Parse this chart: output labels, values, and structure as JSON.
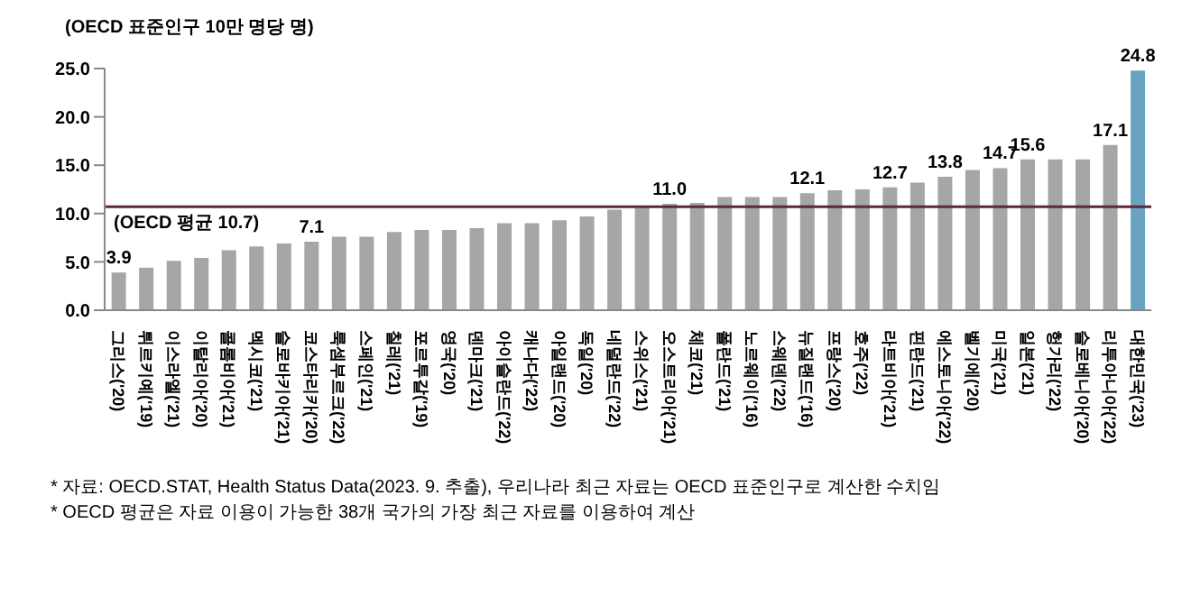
{
  "chart_data": {
    "type": "bar",
    "ylabel": "(OECD 표준인구 10만 명당 명)",
    "categories": [
      "그리스('20)",
      "튀르키예('19)",
      "이스라엘('21)",
      "이탈리아('20)",
      "콜롬비아('21)",
      "멕시코('21)",
      "슬로바키아('21)",
      "코스타리카('20)",
      "룩셈부르크('22)",
      "스페인('21)",
      "칠레('21)",
      "포르투갈('19)",
      "영국('20)",
      "덴마크('21)",
      "아이슬란드('22)",
      "캐나다('22)",
      "아일랜드('20)",
      "독일('20)",
      "네덜란드('22)",
      "스위스('21)",
      "오스트리아('21)",
      "체코('21)",
      "폴란드('21)",
      "노르웨이('16)",
      "스웨덴('22)",
      "뉴질랜드('16)",
      "프랑스('20)",
      "호주('22)",
      "라트비아('21)",
      "핀란드('21)",
      "에스토니아('22)",
      "벨기에('20)",
      "미국('21)",
      "일본('21)",
      "헝가리('22)",
      "슬로베니아('20)",
      "리투아니아('22)",
      "대한민국('23)"
    ],
    "values": [
      3.9,
      4.4,
      5.1,
      5.4,
      6.2,
      6.6,
      6.9,
      7.1,
      7.6,
      7.6,
      8.1,
      8.3,
      8.3,
      8.5,
      9.0,
      9.0,
      9.3,
      9.7,
      10.4,
      10.6,
      11.0,
      11.1,
      11.7,
      11.7,
      11.7,
      12.1,
      12.4,
      12.5,
      12.7,
      13.2,
      13.8,
      14.5,
      14.7,
      15.6,
      15.6,
      15.6,
      17.1,
      24.8
    ],
    "value_labels": [
      "3.9",
      null,
      null,
      null,
      null,
      null,
      null,
      "7.1",
      null,
      null,
      null,
      null,
      null,
      null,
      null,
      null,
      null,
      null,
      null,
      null,
      "11.0",
      null,
      null,
      null,
      null,
      "12.1",
      null,
      null,
      "12.7",
      null,
      "13.8",
      null,
      "14.7",
      "15.6",
      null,
      null,
      "17.1",
      "24.8"
    ],
    "colors": [
      "#a6a6a6",
      "#a6a6a6",
      "#a6a6a6",
      "#a6a6a6",
      "#a6a6a6",
      "#a6a6a6",
      "#a6a6a6",
      "#a6a6a6",
      "#a6a6a6",
      "#a6a6a6",
      "#a6a6a6",
      "#a6a6a6",
      "#a6a6a6",
      "#a6a6a6",
      "#a6a6a6",
      "#a6a6a6",
      "#a6a6a6",
      "#a6a6a6",
      "#a6a6a6",
      "#a6a6a6",
      "#a6a6a6",
      "#a6a6a6",
      "#a6a6a6",
      "#a6a6a6",
      "#a6a6a6",
      "#a6a6a6",
      "#a6a6a6",
      "#a6a6a6",
      "#a6a6a6",
      "#a6a6a6",
      "#a6a6a6",
      "#a6a6a6",
      "#a6a6a6",
      "#a6a6a6",
      "#a6a6a6",
      "#a6a6a6",
      "#a6a6a6",
      "#6aa3bf"
    ],
    "ylim": [
      0,
      25
    ],
    "yticks": [
      {
        "value": 0,
        "label": "0.0"
      },
      {
        "value": 5,
        "label": "5.0"
      },
      {
        "value": 10,
        "label": "10.0"
      },
      {
        "value": 15,
        "label": "15.0"
      },
      {
        "value": 20,
        "label": "20.0"
      },
      {
        "value": 25,
        "label": "25.0"
      }
    ],
    "ref_lines": [
      {
        "axis": "y",
        "value": 10.7,
        "label": "(OECD 평균 10.7)",
        "color": "#5a2a3a"
      }
    ],
    "grid": false,
    "legend": false,
    "annotations": [
      "* 자료: OECD.STAT, Health Status Data(2023. 9. 추출), 우리나라 최근 자료는 OECD 표준인구로 계산한 수치임",
      "* OECD 평균은 자료 이용이 가능한 38개 국가의 가장 최근 자료를 이용하여 계산"
    ]
  }
}
